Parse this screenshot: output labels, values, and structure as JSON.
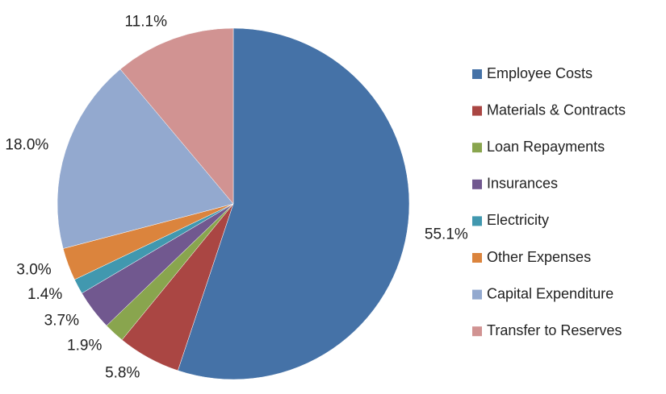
{
  "chart_data": {
    "type": "pie",
    "categories": [
      "Employee Costs",
      "Materials & Contracts",
      "Loan Repayments",
      "Insurances",
      "Electricity",
      "Other Expenses",
      "Capital Expenditure",
      "Transfer to Reserves"
    ],
    "values": [
      55.1,
      5.8,
      1.9,
      3.7,
      1.4,
      3.0,
      18.0,
      11.1
    ],
    "value_labels": [
      "55.1%",
      "5.8%",
      "1.9%",
      "3.7%",
      "1.4%",
      "3.0%",
      "18.0%",
      "11.1%"
    ],
    "colors": [
      "#4572a7",
      "#aa4643",
      "#89a54e",
      "#71588f",
      "#4198af",
      "#db843d",
      "#93a9cf",
      "#d19392"
    ],
    "legend": "right"
  }
}
